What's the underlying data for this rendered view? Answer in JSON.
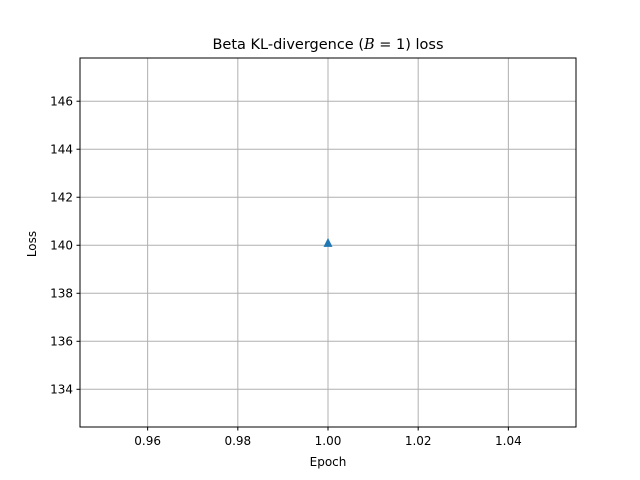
{
  "chart_data": {
    "type": "scatter",
    "title": {
      "prefix": "Beta KL-divergence (",
      "symbol": "B",
      "middle": " = 1) loss"
    },
    "xlabel": "Epoch",
    "ylabel": "Loss",
    "xlim": [
      0.945,
      1.055
    ],
    "ylim": [
      132.43,
      147.8
    ],
    "xticks": [
      0.96,
      0.98,
      1.0,
      1.02,
      1.04
    ],
    "xtick_labels": [
      "0.96",
      "0.98",
      "1.00",
      "1.02",
      "1.04"
    ],
    "yticks": [
      134,
      136,
      138,
      140,
      142,
      144,
      146
    ],
    "ytick_labels": [
      "134",
      "136",
      "138",
      "140",
      "142",
      "144",
      "146"
    ],
    "grid": true,
    "series": [
      {
        "marker": "triangle-up",
        "color": "#1f77b4",
        "points": [
          {
            "x": 1.0,
            "y": 140.1
          }
        ]
      }
    ]
  }
}
